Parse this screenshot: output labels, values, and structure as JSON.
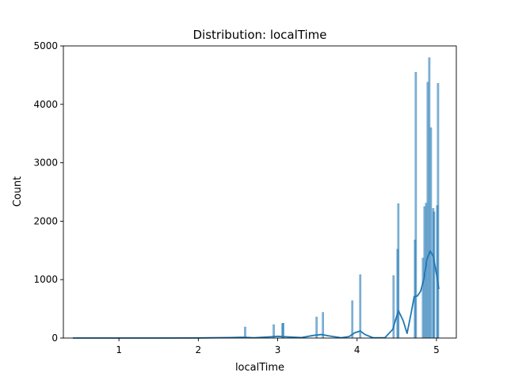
{
  "chart_data": {
    "type": "histogram",
    "title": "Distribution: localTime",
    "xlabel": "localTime",
    "ylabel": "Count",
    "xlim": [
      0.3,
      5.25
    ],
    "ylim": [
      0,
      5000
    ],
    "xticks": [
      1,
      2,
      3,
      4,
      5
    ],
    "xtick_labels": [
      "1",
      "2",
      "3",
      "4",
      "5"
    ],
    "yticks": [
      0,
      1000,
      2000,
      3000,
      4000,
      5000
    ],
    "ytick_labels": [
      "0",
      "1000",
      "2000",
      "3000",
      "4000",
      "5000"
    ],
    "grid": false,
    "legend": "none",
    "colors": {
      "bar": "#1f77b4",
      "kde": "#1f77b4"
    },
    "bars": [
      {
        "x": 2.59,
        "count": 190
      },
      {
        "x": 2.95,
        "count": 230
      },
      {
        "x": 3.06,
        "count": 250
      },
      {
        "x": 3.07,
        "count": 255
      },
      {
        "x": 3.49,
        "count": 360
      },
      {
        "x": 3.57,
        "count": 440
      },
      {
        "x": 3.94,
        "count": 640
      },
      {
        "x": 4.04,
        "count": 1085
      },
      {
        "x": 4.46,
        "count": 1070
      },
      {
        "x": 4.51,
        "count": 1520
      },
      {
        "x": 4.52,
        "count": 2300
      },
      {
        "x": 4.73,
        "count": 1680
      },
      {
        "x": 4.74,
        "count": 4550
      },
      {
        "x": 4.83,
        "count": 1370
      },
      {
        "x": 4.85,
        "count": 2250
      },
      {
        "x": 4.87,
        "count": 2310
      },
      {
        "x": 4.89,
        "count": 4380
      },
      {
        "x": 4.91,
        "count": 4800
      },
      {
        "x": 4.93,
        "count": 3600
      },
      {
        "x": 4.96,
        "count": 2220
      },
      {
        "x": 4.97,
        "count": 2160
      },
      {
        "x": 5.01,
        "count": 2270
      },
      {
        "x": 5.02,
        "count": 4360
      }
    ],
    "kde": {
      "x": [
        0.42,
        1.0,
        1.5,
        2.0,
        2.4,
        2.55,
        2.6,
        2.7,
        2.9,
        3.0,
        3.1,
        3.3,
        3.45,
        3.55,
        3.65,
        3.8,
        3.9,
        3.97,
        4.04,
        4.1,
        4.2,
        4.35,
        4.45,
        4.52,
        4.58,
        4.63,
        4.68,
        4.72,
        4.76,
        4.8,
        4.84,
        4.88,
        4.92,
        4.96,
        5.0,
        5.03
      ],
      "y": [
        0,
        0,
        0,
        2,
        8,
        14,
        12,
        5,
        20,
        30,
        22,
        8,
        45,
        60,
        35,
        5,
        25,
        90,
        120,
        60,
        5,
        5,
        150,
        470,
        300,
        80,
        420,
        710,
        720,
        800,
        1000,
        1350,
        1490,
        1400,
        1100,
        840
      ]
    }
  }
}
